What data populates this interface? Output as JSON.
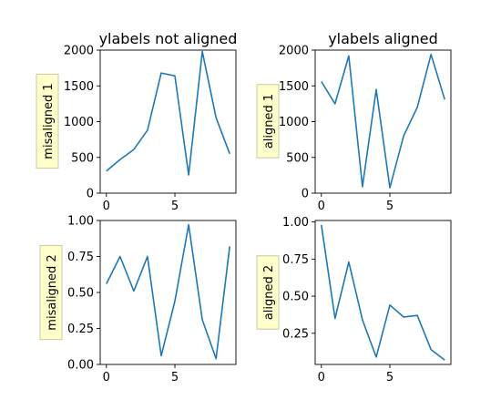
{
  "chart_data": [
    {
      "type": "line",
      "title": "ylabels not aligned",
      "ylabel": "misaligned 1",
      "xlabel": "",
      "x": [
        0,
        1,
        2,
        3,
        4,
        5,
        6,
        7,
        8,
        9
      ],
      "series": [
        {
          "values": [
            310,
            470,
            610,
            880,
            1680,
            1640,
            255,
            1980,
            1055,
            550
          ]
        }
      ],
      "xlim": [
        -0.45,
        9.45
      ],
      "ylim": [
        0,
        2000
      ],
      "xticks": [
        0,
        5
      ],
      "xtick_labels": [
        "0",
        "5"
      ],
      "yticks": [
        0,
        500,
        1000,
        1500,
        2000
      ],
      "ytick_labels": [
        "0",
        "500",
        "1000",
        "1500",
        "2000"
      ],
      "grid": false,
      "line_color": "#1f77b4",
      "label_box_color": "#ffffcc"
    },
    {
      "type": "line",
      "title": "ylabels aligned",
      "ylabel": "aligned 1",
      "xlabel": "",
      "x": [
        0,
        1,
        2,
        3,
        4,
        5,
        6,
        7,
        8,
        9
      ],
      "series": [
        {
          "values": [
            1560,
            1250,
            1920,
            90,
            1450,
            75,
            800,
            1200,
            1940,
            1310
          ]
        }
      ],
      "xlim": [
        -0.45,
        9.45
      ],
      "ylim": [
        0,
        2000
      ],
      "xticks": [
        0,
        5
      ],
      "xtick_labels": [
        "0",
        "5"
      ],
      "yticks": [
        0,
        500,
        1000,
        1500,
        2000
      ],
      "ytick_labels": [
        "0",
        "500",
        "1000",
        "1500",
        "2000"
      ],
      "grid": false,
      "line_color": "#1f77b4",
      "label_box_color": "#ffffcc"
    },
    {
      "type": "line",
      "title": "",
      "ylabel": "misaligned 2",
      "xlabel": "",
      "x": [
        0,
        1,
        2,
        3,
        4,
        5,
        6,
        7,
        8,
        9
      ],
      "series": [
        {
          "values": [
            0.56,
            0.75,
            0.51,
            0.75,
            0.06,
            0.44,
            0.97,
            0.31,
            0.04,
            0.82
          ]
        }
      ],
      "xlim": [
        -0.45,
        9.45
      ],
      "ylim": [
        0.0,
        1.0
      ],
      "xticks": [
        0,
        5
      ],
      "xtick_labels": [
        "0",
        "5"
      ],
      "yticks": [
        0.0,
        0.25,
        0.5,
        0.75,
        1.0
      ],
      "ytick_labels": [
        "0.00",
        "0.25",
        "0.50",
        "0.75",
        "1.00"
      ],
      "grid": false,
      "line_color": "#1f77b4",
      "label_box_color": "#ffffcc"
    },
    {
      "type": "line",
      "title": "",
      "ylabel": "aligned 2",
      "xlabel": "",
      "x": [
        0,
        1,
        2,
        3,
        4,
        5,
        6,
        7,
        8,
        9
      ],
      "series": [
        {
          "values": [
            0.98,
            0.35,
            0.73,
            0.34,
            0.09,
            0.44,
            0.36,
            0.37,
            0.14,
            0.07
          ]
        }
      ],
      "xlim": [
        -0.45,
        9.45
      ],
      "ylim": [
        0.04,
        1.01
      ],
      "xticks": [
        0,
        5
      ],
      "xtick_labels": [
        "0",
        "5"
      ],
      "yticks": [
        0.25,
        0.5,
        0.75,
        1.0
      ],
      "ytick_labels": [
        "0.25",
        "0.50",
        "0.75",
        "1.00"
      ],
      "grid": false,
      "line_color": "#1f77b4",
      "label_box_color": "#ffffcc"
    }
  ]
}
